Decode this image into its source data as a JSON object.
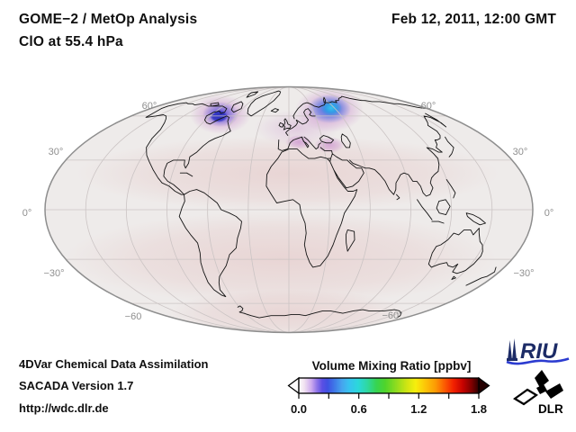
{
  "header": {
    "product": "GOME−2 / MetOp Analysis",
    "level": "ClO at 55.4 hPa",
    "datetime": "Feb 12, 2011, 12:00 GMT"
  },
  "footer": {
    "line1": "4DVar Chemical Data Assimilation",
    "line2": "SACADA Version 1.7",
    "line3": "http://wdc.dlr.de"
  },
  "colorbar": {
    "title": "Volume Mixing Ratio [ppbv]",
    "ticks": [
      "0.0",
      "0.6",
      "1.2",
      "1.8"
    ],
    "min": 0.0,
    "max": 1.8,
    "left_arrow_color": "#fdfbfd",
    "right_arrow_color": "#240000",
    "stops": [
      [
        0,
        "#fdfbfd"
      ],
      [
        3,
        "#f1e3f1"
      ],
      [
        7,
        "#cdaaee"
      ],
      [
        10,
        "#9176e8"
      ],
      [
        13,
        "#5b4fe4"
      ],
      [
        16,
        "#3f51e2"
      ],
      [
        20,
        "#3f7ae8"
      ],
      [
        24,
        "#46a5ee"
      ],
      [
        28,
        "#37c3f0"
      ],
      [
        33,
        "#2bd8da"
      ],
      [
        38,
        "#2fd8a2"
      ],
      [
        43,
        "#36d452"
      ],
      [
        48,
        "#4fd42b"
      ],
      [
        54,
        "#8edc1f"
      ],
      [
        60,
        "#cfe513"
      ],
      [
        65,
        "#f7ee0d"
      ],
      [
        70,
        "#fcc708"
      ],
      [
        76,
        "#fc9a04"
      ],
      [
        81,
        "#fb5b02"
      ],
      [
        86,
        "#f22000"
      ],
      [
        91,
        "#c70300"
      ],
      [
        96,
        "#7e0000"
      ],
      [
        100,
        "#2c0000"
      ]
    ]
  },
  "map": {
    "lat_labels_left": [
      "60°",
      "30°",
      "0°",
      "−30°",
      "−60"
    ],
    "lat_labels_right": [
      "60°",
      "30°",
      "0°",
      "−30°",
      "−60°"
    ]
  },
  "logos": {
    "riu_text": "RIU",
    "dlr_text": "DLR"
  },
  "colors": {
    "riu_navy": "#1c2b66",
    "riu_wave_blue": "#2b3bd0",
    "map_background": "#eeebea",
    "background_pink_wash": "#e0b4b4",
    "fringe_magenta": "#c277c8",
    "left_maximum_blue": "#2c31c0",
    "right_maximum_cyan": "#35c4ee",
    "graticule_gray": "#cbc4c4",
    "coastline_black": "#141414"
  },
  "chart_data": {
    "type": "heatmap",
    "title": "GOME−2 / MetOp Analysis",
    "subtitle": "ClO at 55.4 hPa",
    "timestamp": "Feb 12, 2011, 12:00 GMT",
    "projection": "Mollweide world map centered on 0° longitude",
    "colorbar_label": "Volume Mixing Ratio [ppbv]",
    "value_range_ppbv": [
      0.0,
      1.8
    ],
    "colorbar_ticks": [
      0.0,
      0.6,
      1.2,
      1.8
    ],
    "colorbar_style": "rainbow: white → violet → blue → cyan → green → yellow → red → black, with under/overflow arrows",
    "graticule": {
      "lat_step_deg": 30,
      "lon_step_deg": 30,
      "lat_labels_deg": [
        60,
        30,
        0,
        -30,
        -60
      ]
    },
    "maxima": [
      {
        "approx_location": "Hudson Strait / Baffin Island (~78°W, 62°N)",
        "peak_value_ppbv": 0.35,
        "appearance": "purple patch with dark-blue core"
      },
      {
        "approx_location": "Barents Sea / Novaya Zemlya (~50°E, 66°N)",
        "peak_value_ppbv": 0.55,
        "appearance": "blue patch with bright cyan core"
      }
    ],
    "secondary_features": [
      {
        "approx_location": "southeast Europe to Caspian (~10–40°E, 40–48°N)",
        "value_ppbv": 0.15,
        "appearance": "faint magenta patches"
      },
      {
        "approx_location": "global background, mid and low latitudes",
        "value_ppbv": 0.05,
        "appearance": "pale pink wash"
      }
    ]
  }
}
